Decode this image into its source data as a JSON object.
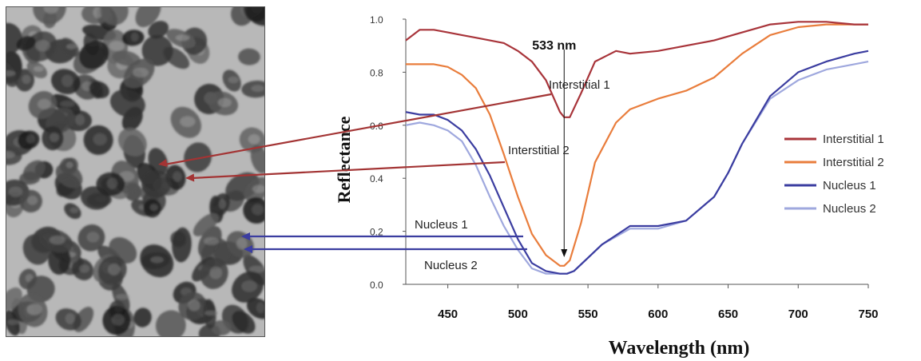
{
  "chart_data": {
    "type": "line",
    "xlabel": "Wavelength (nm)",
    "ylabel": "Reflectance",
    "xlim": [
      420,
      750
    ],
    "ylim": [
      0,
      1.0
    ],
    "x_ticks": [
      450,
      500,
      550,
      600,
      650,
      700,
      750
    ],
    "y_ticks": [
      0.0,
      0.2,
      0.4,
      0.6,
      0.8,
      1.0
    ],
    "y_tick_labels": [
      "0.0",
      "0.2",
      "0.4",
      "0.6",
      "0.8",
      "1.0"
    ],
    "legend_position": "right",
    "annotation": {
      "text": "533 nm",
      "x": 533
    },
    "series": [
      {
        "name": "Interstitial 1",
        "color": "#a8343a",
        "x": [
          420,
          430,
          440,
          450,
          460,
          470,
          480,
          490,
          500,
          510,
          520,
          525,
          530,
          533,
          537,
          545,
          555,
          570,
          580,
          600,
          620,
          640,
          660,
          680,
          700,
          720,
          740,
          750
        ],
        "y": [
          0.92,
          0.96,
          0.96,
          0.95,
          0.94,
          0.93,
          0.92,
          0.91,
          0.88,
          0.84,
          0.77,
          0.71,
          0.65,
          0.63,
          0.63,
          0.72,
          0.84,
          0.88,
          0.87,
          0.88,
          0.9,
          0.92,
          0.95,
          0.98,
          0.99,
          0.99,
          0.98,
          0.98
        ]
      },
      {
        "name": "Interstitial 2",
        "color": "#e97d3c",
        "x": [
          420,
          430,
          440,
          450,
          460,
          470,
          480,
          490,
          500,
          510,
          520,
          530,
          533,
          537,
          545,
          555,
          570,
          580,
          600,
          620,
          640,
          660,
          680,
          700,
          720,
          740,
          750
        ],
        "y": [
          0.83,
          0.83,
          0.83,
          0.82,
          0.79,
          0.74,
          0.64,
          0.49,
          0.33,
          0.19,
          0.11,
          0.07,
          0.07,
          0.09,
          0.23,
          0.46,
          0.61,
          0.66,
          0.7,
          0.73,
          0.78,
          0.87,
          0.94,
          0.97,
          0.98,
          0.98,
          0.98
        ]
      },
      {
        "name": "Nucleus 1",
        "color": "#3b3da0",
        "x": [
          420,
          430,
          440,
          450,
          460,
          470,
          480,
          490,
          500,
          510,
          520,
          530,
          535,
          540,
          550,
          560,
          580,
          600,
          620,
          640,
          650,
          660,
          680,
          700,
          720,
          740,
          750
        ],
        "y": [
          0.65,
          0.64,
          0.64,
          0.62,
          0.58,
          0.51,
          0.41,
          0.29,
          0.17,
          0.08,
          0.05,
          0.04,
          0.04,
          0.05,
          0.1,
          0.15,
          0.22,
          0.22,
          0.24,
          0.33,
          0.42,
          0.53,
          0.71,
          0.8,
          0.84,
          0.87,
          0.88
        ]
      },
      {
        "name": "Nucleus 2",
        "color": "#9fa8de",
        "x": [
          420,
          430,
          440,
          450,
          460,
          470,
          480,
          490,
          500,
          510,
          520,
          530,
          535,
          540,
          550,
          560,
          580,
          600,
          620,
          640,
          650,
          660,
          680,
          700,
          720,
          740,
          750
        ],
        "y": [
          0.6,
          0.61,
          0.6,
          0.58,
          0.54,
          0.45,
          0.33,
          0.22,
          0.13,
          0.06,
          0.04,
          0.04,
          0.04,
          0.05,
          0.1,
          0.15,
          0.21,
          0.21,
          0.24,
          0.33,
          0.42,
          0.53,
          0.7,
          0.77,
          0.81,
          0.83,
          0.84
        ]
      }
    ],
    "callout_labels": [
      "Interstitial 1",
      "Interstitial 2",
      "Nucleus 1",
      "Nucleus 2"
    ]
  },
  "micrograph": {
    "icon": "tissue-micrograph-icon"
  }
}
